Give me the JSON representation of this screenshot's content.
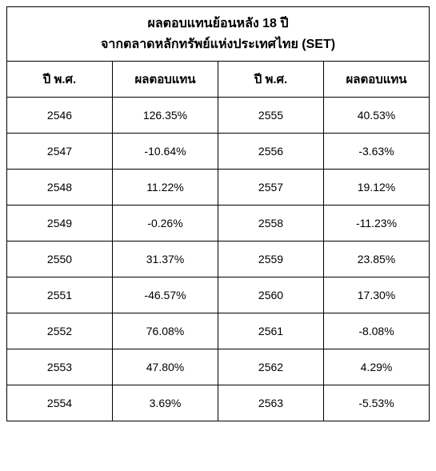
{
  "table": {
    "type": "table",
    "title_line1": "ผลตอบแทนย้อนหลัง 18 ปี",
    "title_line2": "จากตลาดหลักทรัพย์แห่งประเทศไทย (SET)",
    "title_fontsize": 16,
    "header_fontsize": 15,
    "cell_fontsize": 14,
    "border_color": "#000000",
    "background_color": "#ffffff",
    "text_color": "#000000",
    "columns": [
      "ปี พ.ศ.",
      "ผลตอบแทน",
      "ปี พ.ศ.",
      "ผลตอบแทน"
    ],
    "column_widths_pct": [
      25,
      25,
      25,
      25
    ],
    "rows": [
      {
        "c0": "2546",
        "c1": "126.35%",
        "c2": "2555",
        "c3": "40.53%"
      },
      {
        "c0": "2547",
        "c1": "-10.64%",
        "c2": "2556",
        "c3": "-3.63%"
      },
      {
        "c0": "2548",
        "c1": "11.22%",
        "c2": "2557",
        "c3": "19.12%"
      },
      {
        "c0": "2549",
        "c1": "-0.26%",
        "c2": "2558",
        "c3": "-11.23%"
      },
      {
        "c0": "2550",
        "c1": "31.37%",
        "c2": "2559",
        "c3": "23.85%"
      },
      {
        "c0": "2551",
        "c1": "-46.57%",
        "c2": "2560",
        "c3": "17.30%"
      },
      {
        "c0": "2552",
        "c1": "76.08%",
        "c2": "2561",
        "c3": "-8.08%"
      },
      {
        "c0": "2553",
        "c1": "47.80%",
        "c2": "2562",
        "c3": "4.29%"
      },
      {
        "c0": "2554",
        "c1": "3.69%",
        "c2": "2563",
        "c3": "-5.53%"
      }
    ]
  }
}
